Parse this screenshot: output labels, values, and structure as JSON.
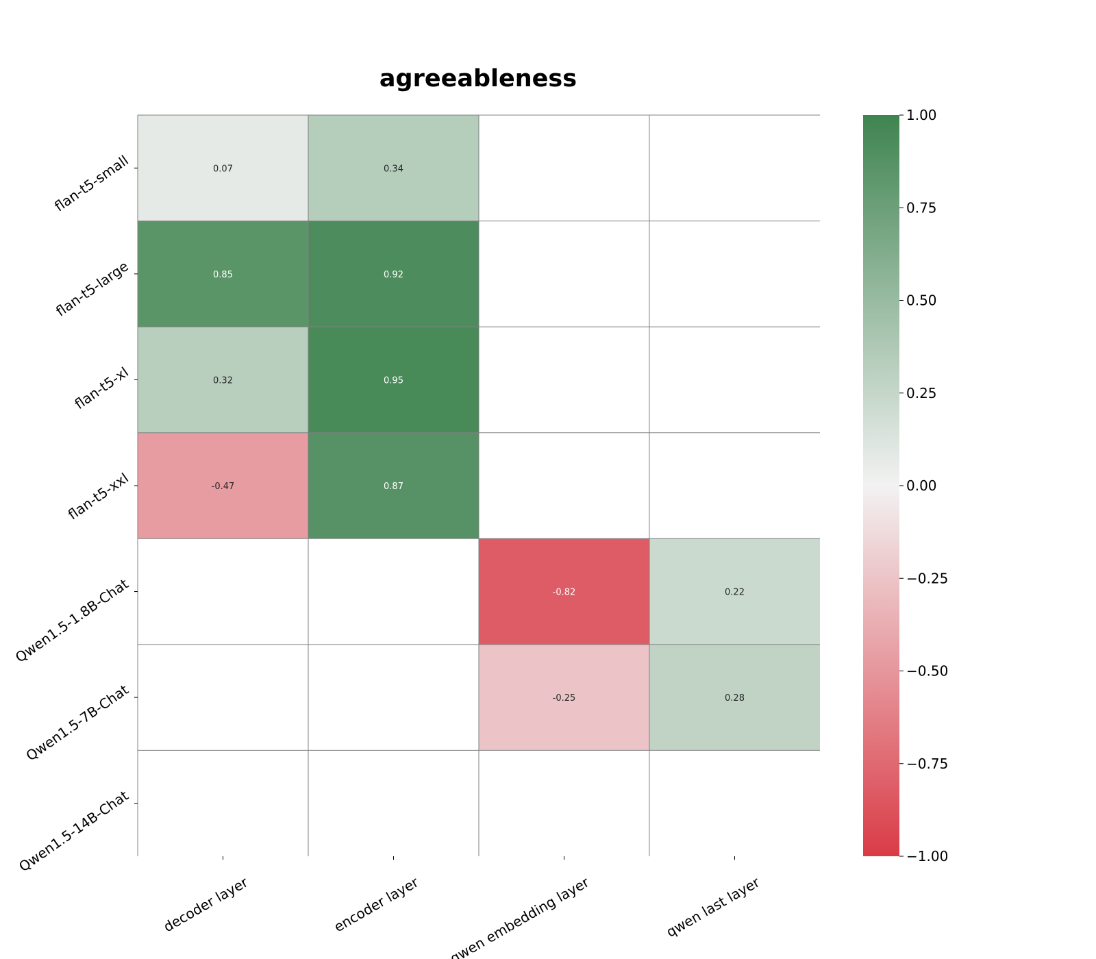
{
  "chart_data": {
    "type": "heatmap",
    "title": "agreeableness",
    "xlabel": "",
    "ylabel": "",
    "x_categories": [
      "decoder layer",
      "encoder layer",
      "qwen embedding layer",
      "qwen last layer"
    ],
    "y_categories": [
      "flan-t5-small",
      "flan-t5-large",
      "flan-t5-xl",
      "flan-t5-xxl",
      "Qwen1.5-1.8B-Chat",
      "Qwen1.5-7B-Chat",
      "Qwen1.5-14B-Chat"
    ],
    "values": [
      [
        0.07,
        0.34,
        null,
        null
      ],
      [
        0.85,
        0.92,
        null,
        null
      ],
      [
        0.32,
        0.95,
        null,
        null
      ],
      [
        -0.47,
        0.87,
        null,
        null
      ],
      [
        null,
        null,
        -0.82,
        0.22
      ],
      [
        null,
        null,
        -0.25,
        0.28
      ],
      [
        null,
        null,
        null,
        null
      ]
    ],
    "value_labels": [
      [
        "0.07",
        "0.34",
        "",
        ""
      ],
      [
        "0.85",
        "0.92",
        "",
        ""
      ],
      [
        "0.32",
        "0.95",
        "",
        ""
      ],
      [
        "-0.47",
        "0.87",
        "",
        ""
      ],
      [
        "",
        "",
        "-0.82",
        "0.22"
      ],
      [
        "",
        "",
        "-0.25",
        "0.28"
      ],
      [
        "",
        "",
        "",
        ""
      ]
    ],
    "colorbar": {
      "range": [
        -1.0,
        1.0
      ],
      "ticks": [
        1.0,
        0.75,
        0.5,
        0.25,
        0.0,
        -0.25,
        -0.5,
        -0.75,
        -1.0
      ],
      "tick_labels": [
        "1.00",
        "0.75",
        "0.50",
        "0.25",
        "0.00",
        "−0.25",
        "−0.50",
        "−0.75",
        "−1.00"
      ],
      "colors": {
        "low": "#da3b46",
        "mid": "#f2f2f2",
        "high": "#3f8450"
      }
    },
    "grid": true,
    "legend": "right"
  }
}
